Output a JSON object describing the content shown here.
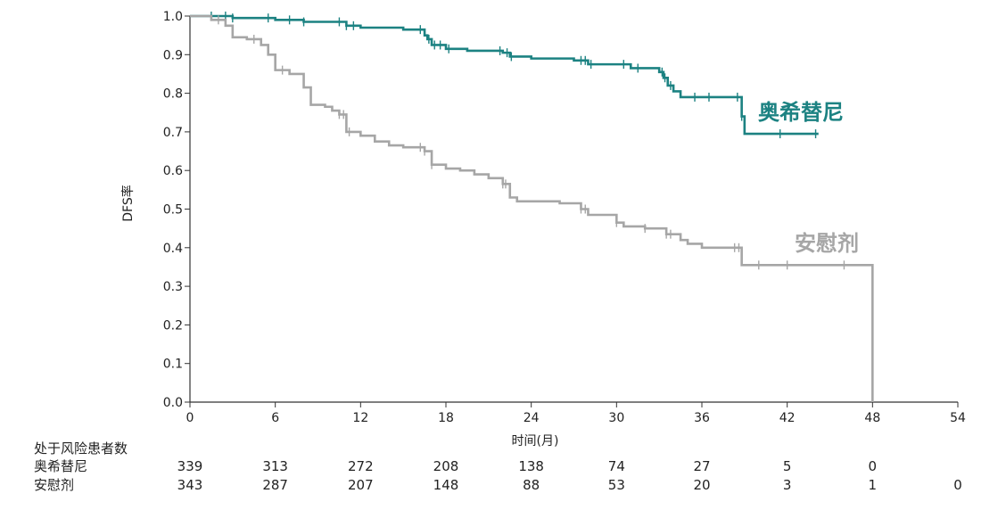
{
  "chart_data": {
    "type": "line",
    "title": "",
    "xlabel": "时间(月)",
    "ylabel": "DFS率",
    "xlim": [
      0,
      54
    ],
    "ylim": [
      0,
      1.0
    ],
    "x_ticks": [
      0,
      6,
      12,
      18,
      24,
      30,
      36,
      42,
      48,
      54
    ],
    "y_ticks": [
      0.0,
      0.1,
      0.2,
      0.3,
      0.4,
      0.5,
      0.6,
      0.7,
      0.8,
      0.9,
      1.0
    ],
    "grid": false,
    "series": [
      {
        "name": "奥希替尼",
        "color": "#1c8282",
        "steps": [
          [
            0,
            1.0
          ],
          [
            3,
            0.995
          ],
          [
            6,
            0.99
          ],
          [
            8,
            0.985
          ],
          [
            11,
            0.975
          ],
          [
            12,
            0.97
          ],
          [
            15,
            0.965
          ],
          [
            16.5,
            0.95
          ],
          [
            16.7,
            0.94
          ],
          [
            17,
            0.925
          ],
          [
            18,
            0.915
          ],
          [
            19.5,
            0.91
          ],
          [
            22,
            0.905
          ],
          [
            22.5,
            0.895
          ],
          [
            24,
            0.89
          ],
          [
            27,
            0.885
          ],
          [
            28,
            0.875
          ],
          [
            31,
            0.865
          ],
          [
            33,
            0.855
          ],
          [
            33.3,
            0.84
          ],
          [
            33.6,
            0.82
          ],
          [
            34,
            0.805
          ],
          [
            34.5,
            0.79
          ],
          [
            38.5,
            0.79
          ],
          [
            38.8,
            0.74
          ],
          [
            39,
            0.695
          ],
          [
            44.2,
            0.695
          ]
        ],
        "censor_marks": [
          1.5,
          2.5,
          3,
          5.5,
          7,
          8,
          10.5,
          11,
          11.5,
          16.2,
          16.8,
          17.2,
          17.6,
          18.2,
          21.8,
          22.3,
          22.6,
          27.5,
          27.8,
          28.2,
          30.5,
          31.5,
          33.2,
          33.4,
          33.8,
          35.5,
          36.5,
          38.5,
          38.8,
          41.5,
          44
        ]
      },
      {
        "name": "安慰剂",
        "color": "#a6a6a6",
        "steps": [
          [
            0,
            1.0
          ],
          [
            1.5,
            0.99
          ],
          [
            2.5,
            0.975
          ],
          [
            3,
            0.945
          ],
          [
            4,
            0.94
          ],
          [
            5,
            0.925
          ],
          [
            5.5,
            0.9
          ],
          [
            6,
            0.86
          ],
          [
            7,
            0.85
          ],
          [
            8,
            0.815
          ],
          [
            8.5,
            0.77
          ],
          [
            9.5,
            0.765
          ],
          [
            10,
            0.755
          ],
          [
            10.5,
            0.745
          ],
          [
            11,
            0.7
          ],
          [
            12,
            0.69
          ],
          [
            13,
            0.675
          ],
          [
            14,
            0.665
          ],
          [
            15,
            0.66
          ],
          [
            16.5,
            0.65
          ],
          [
            17,
            0.615
          ],
          [
            18,
            0.605
          ],
          [
            19,
            0.6
          ],
          [
            20,
            0.59
          ],
          [
            21,
            0.58
          ],
          [
            22,
            0.565
          ],
          [
            22.5,
            0.53
          ],
          [
            23,
            0.52
          ],
          [
            26,
            0.515
          ],
          [
            27.5,
            0.5
          ],
          [
            28,
            0.485
          ],
          [
            30,
            0.465
          ],
          [
            30.5,
            0.455
          ],
          [
            32,
            0.45
          ],
          [
            33.5,
            0.435
          ],
          [
            34.5,
            0.42
          ],
          [
            35,
            0.41
          ],
          [
            36,
            0.4
          ],
          [
            38,
            0.4
          ],
          [
            38.8,
            0.355
          ],
          [
            48,
            0.355
          ],
          [
            48,
            0.0
          ]
        ],
        "censor_marks": [
          2,
          4.5,
          6.5,
          10.5,
          10.8,
          11.2,
          16.2,
          16.5,
          17,
          22,
          22.2,
          27.5,
          27.8,
          30,
          32,
          33.5,
          33.8,
          38.3,
          38.6,
          40,
          42,
          46
        ]
      }
    ],
    "risk_table": {
      "title": "处于风险患者数",
      "rows": [
        {
          "label": "奥希替尼",
          "values": [
            339,
            313,
            272,
            208,
            138,
            74,
            27,
            5,
            0,
            null
          ]
        },
        {
          "label": "安慰剂",
          "values": [
            343,
            287,
            207,
            148,
            88,
            53,
            20,
            3,
            1,
            0
          ]
        }
      ]
    }
  }
}
